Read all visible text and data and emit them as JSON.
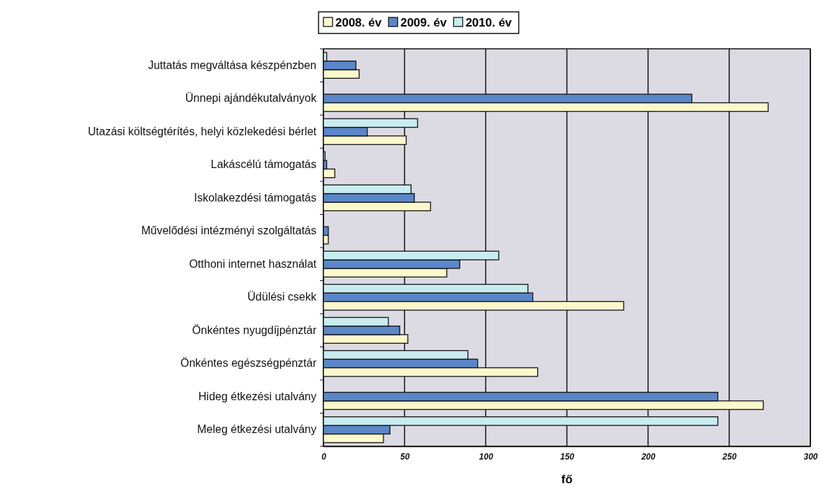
{
  "chart_data": {
    "type": "bar",
    "orientation": "horizontal",
    "xlabel": "fő",
    "categories": [
      "Juttatás megváltása készpénzben",
      "Ünnepi ajándékutalványok",
      "Utazási költségtérítés, helyi közlekedési bérlet",
      "Lakáscélú támogatás",
      "Iskolakezdési támogatás",
      "Művelődési intézményi szolgáltatás",
      "Otthoni internet használat",
      "Üdülési csekk",
      "Önkéntes nyugdíjpénztár",
      "Önkéntes egészségpénztár",
      "Hideg étkezési utalvány",
      "Meleg étkezési utalvány"
    ],
    "series": [
      {
        "name": "2008. év",
        "color": "#fbf8cc",
        "values": [
          22,
          274,
          51,
          7,
          66,
          3,
          76,
          185,
          52,
          132,
          271,
          37
        ]
      },
      {
        "name": "2009. év",
        "color": "#5b86c8",
        "values": [
          20,
          227,
          27,
          2,
          56,
          3,
          84,
          129,
          47,
          95,
          243,
          41
        ]
      },
      {
        "name": "2010. év",
        "color": "#c8ecf0",
        "values": [
          2,
          0,
          58,
          1,
          54,
          0,
          108,
          126,
          40,
          89,
          0,
          243
        ]
      }
    ],
    "xlim": [
      0,
      300
    ],
    "xticks": [
      0,
      50,
      100,
      150,
      200,
      250,
      300
    ],
    "grid": "x",
    "legend": "top"
  }
}
